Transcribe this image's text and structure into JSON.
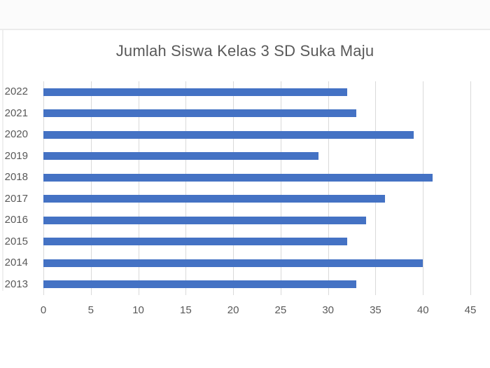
{
  "frame": {
    "top_strip_color": "#fbfbfb",
    "edge_line_color": "#ebebeb"
  },
  "chart_data": {
    "type": "bar",
    "orientation": "horizontal",
    "title": "Jumlah Siswa Kelas 3 SD Suka Maju",
    "categories": [
      "2022",
      "2021",
      "2020",
      "2019",
      "2018",
      "2017",
      "2016",
      "2015",
      "2014",
      "2013"
    ],
    "values": [
      32,
      33,
      39,
      29,
      41,
      36,
      34,
      32,
      40,
      33
    ],
    "xlabel": "",
    "ylabel": "",
    "xlim": [
      0,
      45
    ],
    "x_ticks": [
      0,
      5,
      10,
      15,
      20,
      25,
      30,
      35,
      40,
      45
    ],
    "grid": true,
    "legend": "none",
    "bar_color": "#4472C4",
    "gridline_color": "#d9d9d9",
    "tick_label_color": "#595959",
    "title_color": "#595959"
  }
}
